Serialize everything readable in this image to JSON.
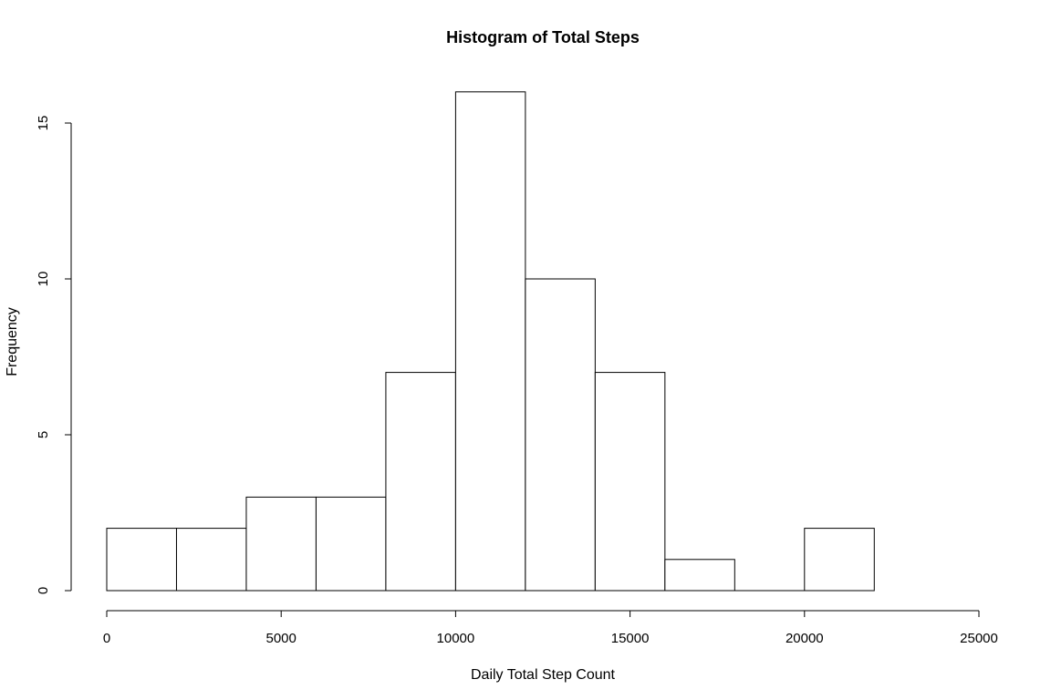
{
  "chart_data": {
    "type": "bar",
    "title": "Histogram of Total Steps",
    "xlabel": "Daily Total Step Count",
    "ylabel": "Frequency",
    "bins": [
      {
        "start": 0,
        "end": 2000,
        "count": 2
      },
      {
        "start": 2000,
        "end": 4000,
        "count": 2
      },
      {
        "start": 4000,
        "end": 6000,
        "count": 3
      },
      {
        "start": 6000,
        "end": 8000,
        "count": 3
      },
      {
        "start": 8000,
        "end": 10000,
        "count": 7
      },
      {
        "start": 10000,
        "end": 12000,
        "count": 16
      },
      {
        "start": 12000,
        "end": 14000,
        "count": 10
      },
      {
        "start": 14000,
        "end": 16000,
        "count": 7
      },
      {
        "start": 16000,
        "end": 18000,
        "count": 1
      },
      {
        "start": 18000,
        "end": 20000,
        "count": 0
      },
      {
        "start": 20000,
        "end": 22000,
        "count": 2
      }
    ],
    "xlim": [
      0,
      25000
    ],
    "ylim": [
      0,
      16
    ],
    "xticks": [
      0,
      5000,
      10000,
      15000,
      20000,
      25000
    ],
    "yticks": [
      0,
      5,
      10,
      15
    ],
    "grid": false,
    "bar_fill": "#ffffff",
    "bar_stroke": "#000000"
  }
}
